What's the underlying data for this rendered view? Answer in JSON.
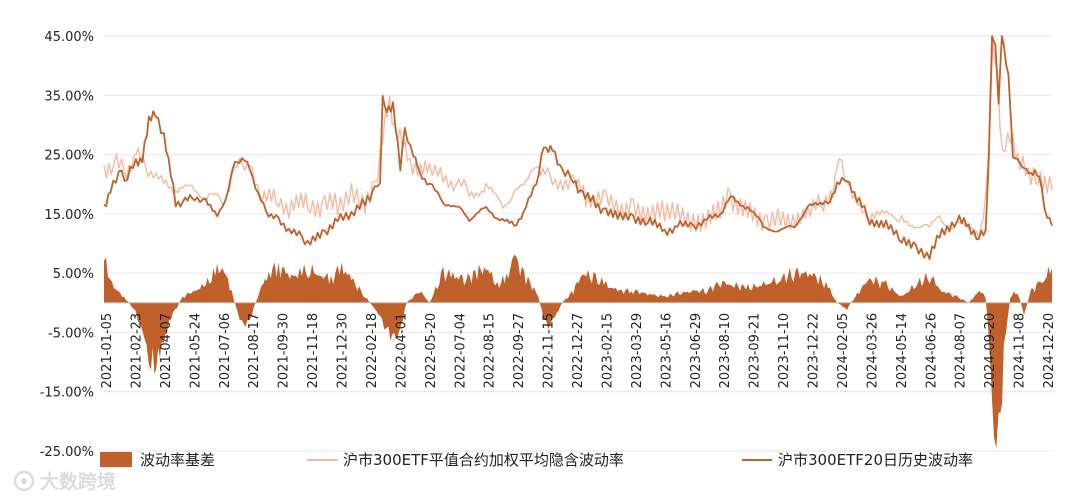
{
  "chart_data": {
    "type": "bar+line",
    "title": "",
    "xlabel": "",
    "ylabel": "",
    "ylim": [
      -0.25,
      0.45
    ],
    "y_ticks": [
      0.45,
      0.35,
      0.25,
      0.15,
      0.05,
      -0.05,
      -0.15,
      -0.25
    ],
    "y_tick_labels": [
      "45.00%",
      "35.00%",
      "25.00%",
      "15.00%",
      "5.00%",
      "-5.00%",
      "-15.00%",
      "-25.00%"
    ],
    "x_range": [
      "2021-01-05",
      "2024-12-31"
    ],
    "x_tick_labels": [
      "2021-01-05",
      "2021-02-23",
      "2021-04-07",
      "2021-05-24",
      "2021-07-06",
      "2021-08-17",
      "2021-09-30",
      "2021-11-18",
      "2021-12-30",
      "2022-02-18",
      "2022-04-01",
      "2022-05-20",
      "2022-07-04",
      "2022-08-15",
      "2022-09-27",
      "2022-11-15",
      "2022-12-27",
      "2023-02-15",
      "2023-03-29",
      "2023-05-16",
      "2023-06-29",
      "2023-08-10",
      "2023-09-21",
      "2023-11-10",
      "2023-12-22",
      "2024-02-05",
      "2024-03-26",
      "2024-05-14",
      "2024-06-26",
      "2024-08-07",
      "2024-09-20",
      "2024-11-08",
      "2024-12-20"
    ],
    "legend_position": "bottom",
    "series": [
      {
        "name": "波动率基差",
        "kind": "area",
        "color": "#c0612b",
        "dates": [
          "2021-01-05",
          "2021-01-20",
          "2021-02-05",
          "2021-02-23",
          "2021-03-08",
          "2021-03-18",
          "2021-04-01",
          "2021-04-15",
          "2021-05-06",
          "2021-05-24",
          "2021-06-10",
          "2021-06-25",
          "2021-07-06",
          "2021-07-20",
          "2021-07-30",
          "2021-08-10",
          "2021-08-20",
          "2021-09-01",
          "2021-09-15",
          "2021-09-30",
          "2021-10-20",
          "2021-11-05",
          "2021-11-18",
          "2021-12-05",
          "2021-12-20",
          "2022-01-05",
          "2022-01-20",
          "2022-02-10",
          "2022-02-25",
          "2022-03-08",
          "2022-03-18",
          "2022-04-01",
          "2022-04-15",
          "2022-05-05",
          "2022-05-20",
          "2022-06-10",
          "2022-06-25",
          "2022-07-15",
          "2022-08-01",
          "2022-08-15",
          "2022-09-01",
          "2022-09-15",
          "2022-09-27",
          "2022-10-15",
          "2022-10-31",
          "2022-11-08",
          "2022-11-15",
          "2022-11-25",
          "2022-12-10",
          "2022-12-27",
          "2023-01-10",
          "2023-01-30",
          "2023-02-15",
          "2023-03-05",
          "2023-03-29",
          "2023-04-20",
          "2023-05-16",
          "2023-06-05",
          "2023-06-29",
          "2023-07-20",
          "2023-08-10",
          "2023-08-25",
          "2023-09-21",
          "2023-10-15",
          "2023-11-10",
          "2023-11-30",
          "2023-12-22",
          "2024-01-10",
          "2024-01-25",
          "2024-02-05",
          "2024-02-20",
          "2024-03-10",
          "2024-03-26",
          "2024-04-20",
          "2024-05-14",
          "2024-06-05",
          "2024-06-26",
          "2024-07-15",
          "2024-08-07",
          "2024-08-25",
          "2024-09-10",
          "2024-09-20",
          "2024-09-27",
          "2024-10-03",
          "2024-10-10",
          "2024-10-18",
          "2024-10-28",
          "2024-11-08",
          "2024-11-18",
          "2024-11-29",
          "2024-12-10",
          "2024-12-20",
          "2024-12-31"
        ],
        "values": [
          0.07,
          0.025,
          0.01,
          -0.015,
          -0.06,
          -0.11,
          -0.09,
          -0.03,
          0.01,
          0.02,
          0.03,
          0.05,
          0.06,
          0.02,
          -0.02,
          -0.04,
          -0.02,
          0.02,
          0.05,
          0.06,
          0.045,
          0.05,
          0.055,
          0.045,
          0.04,
          0.06,
          0.04,
          0.01,
          -0.01,
          -0.03,
          -0.05,
          -0.06,
          0.0,
          0.02,
          0.0,
          0.05,
          0.045,
          0.04,
          0.05,
          0.06,
          0.03,
          0.04,
          0.08,
          0.04,
          0.02,
          -0.01,
          -0.04,
          -0.03,
          0.0,
          0.02,
          0.05,
          0.04,
          0.03,
          0.02,
          0.02,
          0.015,
          0.01,
          0.015,
          0.02,
          0.02,
          0.035,
          0.03,
          0.025,
          0.03,
          0.04,
          0.05,
          0.05,
          0.04,
          0.02,
          0.0,
          -0.01,
          0.02,
          0.04,
          0.03,
          0.01,
          0.03,
          0.045,
          0.02,
          0.01,
          0.0,
          0.02,
          0.01,
          -0.08,
          -0.25,
          -0.25,
          -0.08,
          0.01,
          0.02,
          -0.02,
          0.02,
          0.03,
          0.04,
          0.06
        ]
      },
      {
        "name": "沪市300ETF平值合约加权平均隐含波动率",
        "kind": "line",
        "color": "#f3bba3",
        "dates": [
          "2021-01-05",
          "2021-01-20",
          "2021-02-05",
          "2021-02-23",
          "2021-03-10",
          "2021-04-07",
          "2021-04-25",
          "2021-05-24",
          "2021-06-15",
          "2021-07-06",
          "2021-07-20",
          "2021-08-05",
          "2021-08-17",
          "2021-09-01",
          "2021-09-30",
          "2021-10-20",
          "2021-11-18",
          "2021-12-10",
          "2021-12-30",
          "2022-01-20",
          "2022-02-10",
          "2022-02-25",
          "2022-03-09",
          "2022-03-20",
          "2022-04-01",
          "2022-04-20",
          "2022-05-10",
          "2022-05-20",
          "2022-06-10",
          "2022-07-04",
          "2022-07-20",
          "2022-08-15",
          "2022-09-10",
          "2022-09-27",
          "2022-10-15",
          "2022-10-31",
          "2022-11-10",
          "2022-11-25",
          "2022-12-27",
          "2023-01-15",
          "2023-02-15",
          "2023-03-15",
          "2023-03-29",
          "2023-05-16",
          "2023-06-29",
          "2023-08-10",
          "2023-08-25",
          "2023-09-21",
          "2023-10-20",
          "2023-11-10",
          "2023-12-22",
          "2024-01-15",
          "2024-02-02",
          "2024-02-08",
          "2024-02-25",
          "2024-03-26",
          "2024-05-14",
          "2024-06-26",
          "2024-07-15",
          "2024-08-07",
          "2024-09-10",
          "2024-09-20",
          "2024-09-25",
          "2024-10-01",
          "2024-10-08",
          "2024-10-12",
          "2024-10-20",
          "2024-11-01",
          "2024-11-12",
          "2024-11-25",
          "2024-12-10",
          "2024-12-20",
          "2024-12-31"
        ],
        "values": [
          0.22,
          0.24,
          0.22,
          0.25,
          0.23,
          0.2,
          0.19,
          0.19,
          0.18,
          0.17,
          0.21,
          0.24,
          0.23,
          0.18,
          0.17,
          0.16,
          0.17,
          0.16,
          0.17,
          0.18,
          0.17,
          0.19,
          0.28,
          0.34,
          0.28,
          0.24,
          0.22,
          0.23,
          0.21,
          0.2,
          0.19,
          0.19,
          0.17,
          0.18,
          0.21,
          0.23,
          0.22,
          0.21,
          0.2,
          0.18,
          0.17,
          0.16,
          0.16,
          0.15,
          0.14,
          0.15,
          0.18,
          0.15,
          0.14,
          0.14,
          0.15,
          0.17,
          0.2,
          0.26,
          0.18,
          0.15,
          0.14,
          0.13,
          0.14,
          0.13,
          0.12,
          0.17,
          0.27,
          0.43,
          0.4,
          0.29,
          0.26,
          0.28,
          0.23,
          0.22,
          0.21,
          0.2,
          0.19
        ]
      },
      {
        "name": "沪市300ETF20日历史波动率",
        "kind": "line",
        "color": "#c0612b",
        "dates": [
          "2021-01-05",
          "2021-01-15",
          "2021-02-01",
          "2021-02-10",
          "2021-02-23",
          "2021-03-05",
          "2021-03-15",
          "2021-03-25",
          "2021-04-07",
          "2021-04-25",
          "2021-05-10",
          "2021-05-24",
          "2021-06-10",
          "2021-06-28",
          "2021-07-06",
          "2021-07-15",
          "2021-07-25",
          "2021-08-05",
          "2021-08-17",
          "2021-08-30",
          "2021-09-15",
          "2021-09-30",
          "2021-10-20",
          "2021-11-05",
          "2021-11-18",
          "2021-12-10",
          "2021-12-30",
          "2022-01-20",
          "2022-02-10",
          "2022-02-25",
          "2022-03-05",
          "2022-03-09",
          "2022-03-15",
          "2022-03-25",
          "2022-04-05",
          "2022-04-12",
          "2022-04-25",
          "2022-05-05",
          "2022-05-20",
          "2022-06-10",
          "2022-07-04",
          "2022-07-20",
          "2022-08-15",
          "2022-09-05",
          "2022-09-27",
          "2022-10-15",
          "2022-10-31",
          "2022-11-08",
          "2022-11-15",
          "2022-11-25",
          "2022-12-10",
          "2022-12-27",
          "2023-01-10",
          "2023-01-30",
          "2023-02-15",
          "2023-03-05",
          "2023-03-29",
          "2023-04-20",
          "2023-05-16",
          "2023-06-05",
          "2023-06-29",
          "2023-07-20",
          "2023-08-10",
          "2023-08-25",
          "2023-09-21",
          "2023-10-15",
          "2023-11-10",
          "2023-12-01",
          "2023-12-22",
          "2024-01-10",
          "2024-01-25",
          "2024-02-05",
          "2024-02-20",
          "2024-03-10",
          "2024-03-26",
          "2024-04-20",
          "2024-05-14",
          "2024-06-05",
          "2024-06-26",
          "2024-07-15",
          "2024-08-07",
          "2024-08-25",
          "2024-09-10",
          "2024-09-20",
          "2024-09-25",
          "2024-09-30",
          "2024-10-05",
          "2024-10-10",
          "2024-10-15",
          "2024-10-25",
          "2024-11-01",
          "2024-11-08",
          "2024-11-15",
          "2024-11-25",
          "2024-12-05",
          "2024-12-15",
          "2024-12-20",
          "2024-12-31"
        ],
        "values": [
          0.16,
          0.19,
          0.22,
          0.21,
          0.24,
          0.24,
          0.31,
          0.32,
          0.28,
          0.17,
          0.17,
          0.18,
          0.17,
          0.15,
          0.16,
          0.19,
          0.24,
          0.24,
          0.23,
          0.18,
          0.15,
          0.14,
          0.12,
          0.11,
          0.1,
          0.12,
          0.14,
          0.15,
          0.17,
          0.19,
          0.21,
          0.34,
          0.33,
          0.33,
          0.23,
          0.29,
          0.25,
          0.22,
          0.2,
          0.17,
          0.16,
          0.14,
          0.16,
          0.14,
          0.13,
          0.16,
          0.2,
          0.25,
          0.26,
          0.26,
          0.22,
          0.21,
          0.18,
          0.17,
          0.15,
          0.15,
          0.14,
          0.14,
          0.12,
          0.13,
          0.13,
          0.14,
          0.15,
          0.18,
          0.16,
          0.13,
          0.12,
          0.13,
          0.16,
          0.17,
          0.17,
          0.2,
          0.21,
          0.17,
          0.14,
          0.13,
          0.11,
          0.09,
          0.08,
          0.12,
          0.14,
          0.13,
          0.11,
          0.12,
          0.25,
          0.45,
          0.44,
          0.33,
          0.46,
          0.38,
          0.25,
          0.24,
          0.23,
          0.22,
          0.22,
          0.2,
          0.15,
          0.13
        ]
      }
    ]
  },
  "watermark": "大数跨境"
}
